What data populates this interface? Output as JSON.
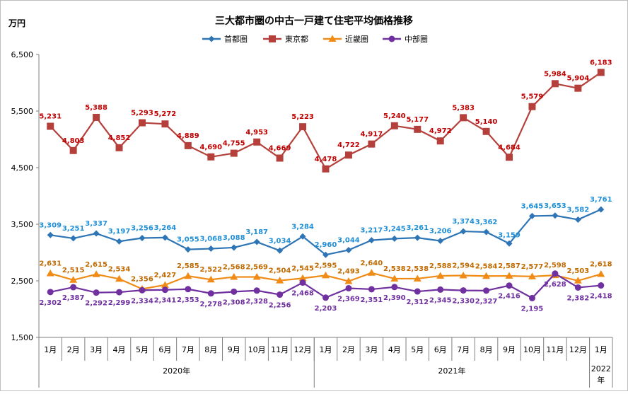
{
  "chart_data": {
    "type": "line",
    "title": "三大都市圏の中古一戸建て住宅平均価格推移",
    "y_unit": "万円",
    "ylim": [
      1500,
      6500
    ],
    "yticks": [
      "1,500",
      "2,500",
      "3,500",
      "4,500",
      "5,500",
      "6,500"
    ],
    "grid": false,
    "legend_position": "top",
    "categories": [
      "1月",
      "2月",
      "3月",
      "4月",
      "5月",
      "6月",
      "7月",
      "8月",
      "9月",
      "10月",
      "11月",
      "12月",
      "1月",
      "2月",
      "3月",
      "4月",
      "5月",
      "6月",
      "7月",
      "8月",
      "9月",
      "10月",
      "11月",
      "12月",
      "1月"
    ],
    "year_groups": [
      {
        "label": "2020年",
        "count": 12
      },
      {
        "label": "2021年",
        "count": 12
      },
      {
        "label": "2022年",
        "count": 1
      }
    ],
    "series": [
      {
        "name": "首都圏",
        "color": "#2e75b6",
        "label_color": "#1f8fd6",
        "marker": "diamond",
        "values": [
          3309,
          3251,
          3337,
          3197,
          3256,
          3264,
          3055,
          3068,
          3088,
          3187,
          3034,
          3284,
          2960,
          3044,
          3217,
          3245,
          3261,
          3206,
          3374,
          3362,
          3159,
          3645,
          3653,
          3582,
          3761
        ],
        "labels": [
          "3,309",
          "3,251",
          "3,337",
          "3,197",
          "3,256",
          "3,264",
          "3,055",
          "3,068",
          "3,088",
          "3,187",
          "3,034",
          "3,284",
          "2,960",
          "3,044",
          "3,217",
          "3,245",
          "3,261",
          "3,206",
          "3,374",
          "3,362",
          "3,159",
          "3,645",
          "3,653",
          "3,582",
          "3,761"
        ]
      },
      {
        "name": "東京都",
        "color": "#b5403b",
        "label_color": "#c00000",
        "marker": "square",
        "values": [
          5231,
          4803,
          5388,
          4852,
          5293,
          5272,
          4889,
          4690,
          4755,
          4953,
          4669,
          5223,
          4478,
          4722,
          4917,
          5240,
          5177,
          4972,
          5383,
          5140,
          4684,
          5579,
          5984,
          5904,
          6183
        ],
        "labels": [
          "5,231",
          "4,803",
          "5,388",
          "4,852",
          "5,293",
          "5,272",
          "4,889",
          "4,690",
          "4,755",
          "4,953",
          "4,669",
          "5,223",
          "4,478",
          "4,722",
          "4,917",
          "5,240",
          "5,177",
          "4,972",
          "5,383",
          "5,140",
          "4,684",
          "5,579",
          "5,984",
          "5,904",
          "6,183"
        ]
      },
      {
        "name": "近畿圏",
        "color": "#f08b16",
        "label_color": "#c06a00",
        "marker": "triangle",
        "values": [
          2631,
          2515,
          2615,
          2534,
          2356,
          2427,
          2585,
          2522,
          2568,
          2569,
          2504,
          2545,
          2595,
          2493,
          2640,
          2538,
          2538,
          2588,
          2594,
          2584,
          2587,
          2577,
          2598,
          2503,
          2618
        ],
        "labels": [
          "2,631",
          "2,515",
          "2,615",
          "2,534",
          "2,356",
          "2,427",
          "2,585",
          "2,522",
          "2,568",
          "2,569",
          "2,504",
          "2,545",
          "2,595",
          "2,493",
          "2,640",
          "2,538",
          "2,538",
          "2,588",
          "2,594",
          "2,584",
          "2,587",
          "2,577",
          "2,598",
          "2,503",
          "2,618"
        ]
      },
      {
        "name": "中部圏",
        "color": "#7030a0",
        "label_color": "#7030a0",
        "marker": "circle",
        "values": [
          2302,
          2387,
          2292,
          2299,
          2334,
          2341,
          2353,
          2278,
          2308,
          2328,
          2256,
          2468,
          2203,
          2369,
          2351,
          2390,
          2312,
          2345,
          2330,
          2327,
          2416,
          2195,
          2628,
          2382,
          2418
        ],
        "labels": [
          "2,302",
          "2,387",
          "2,292",
          "2,299",
          "2,334",
          "2,341",
          "2,353",
          "2,278",
          "2,308",
          "2,328",
          "2,256",
          "2,468",
          "2,203",
          "2,369",
          "2,351",
          "2,390",
          "2,312",
          "2,345",
          "2,330",
          "2,327",
          "2,416",
          "2,195",
          "2,628",
          "2,382",
          "2,418"
        ]
      }
    ]
  }
}
